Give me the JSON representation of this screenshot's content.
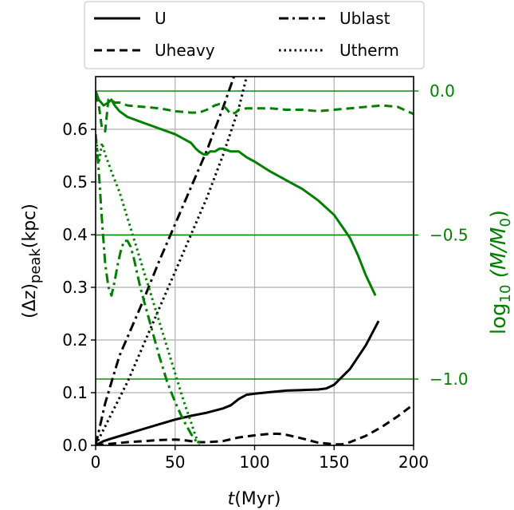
{
  "chart_data": {
    "type": "line",
    "xlabel": {
      "italic": "t",
      "rest": "(Myr)"
    },
    "ylabel": {
      "prefix": "(Δz)",
      "sub": "peak",
      "suffix": "(kpc)"
    },
    "ylabel_right": {
      "prefix": "log",
      "sub": "10",
      "mid": " (M/M",
      "sub2": "0",
      "suffix": ")"
    },
    "xlim": [
      0,
      200
    ],
    "ylim": [
      0,
      0.7
    ],
    "ylim_right": [
      -1.23,
      0.05
    ],
    "grid": true,
    "x_ticks": [
      0,
      50,
      100,
      150,
      200
    ],
    "x_tick_labels": [
      "0",
      "50",
      "100",
      "150",
      "200"
    ],
    "y_ticks": [
      0.0,
      0.1,
      0.2,
      0.3,
      0.4,
      0.5,
      0.6
    ],
    "y_tick_labels": [
      "0.0",
      "0.1",
      "0.2",
      "0.3",
      "0.4",
      "0.5",
      "0.6"
    ],
    "y_right_ticks": [
      0.0,
      -0.5,
      -1.0
    ],
    "y_right_tick_labels": [
      "0.0",
      "−0.5",
      "−1.0"
    ],
    "colors": {
      "left": "#000000",
      "right": "#008000",
      "grid": "#b0b0b0"
    },
    "legend": {
      "placement": "top-center",
      "entries": [
        {
          "label": "U",
          "dash": "solid"
        },
        {
          "label": "Ublast",
          "dash": "dashdot"
        },
        {
          "label": "Uheavy",
          "dash": "dashed"
        },
        {
          "label": "Utherm",
          "dash": "dotted"
        }
      ]
    },
    "series": [
      {
        "key": "U",
        "axis": "left",
        "color": "#000000",
        "dash": "solid",
        "x": [
          0,
          5,
          10,
          20,
          30,
          40,
          50,
          60,
          70,
          80,
          85,
          90,
          95,
          100,
          110,
          120,
          130,
          140,
          145,
          150,
          160,
          170,
          178
        ],
        "y": [
          0.0,
          0.008,
          0.013,
          0.022,
          0.031,
          0.04,
          0.049,
          0.056,
          0.062,
          0.07,
          0.076,
          0.088,
          0.096,
          0.098,
          0.101,
          0.104,
          0.105,
          0.106,
          0.108,
          0.115,
          0.145,
          0.19,
          0.236
        ]
      },
      {
        "key": "Ublast",
        "axis": "left",
        "color": "#000000",
        "dash": "dashdot",
        "x": [
          0,
          3,
          6,
          10,
          15,
          20,
          30,
          40,
          50,
          60,
          70,
          80,
          87
        ],
        "y": [
          0.0,
          0.04,
          0.08,
          0.12,
          0.17,
          0.205,
          0.275,
          0.35,
          0.42,
          0.49,
          0.56,
          0.64,
          0.7
        ]
      },
      {
        "key": "Uheavy",
        "axis": "left",
        "color": "#000000",
        "dash": "dashed",
        "x": [
          0,
          10,
          20,
          30,
          40,
          50,
          55,
          60,
          65,
          70,
          80,
          90,
          100,
          110,
          115,
          120,
          130,
          140,
          150,
          155,
          160,
          170,
          180,
          190,
          200
        ],
        "y": [
          0.0,
          0.003,
          0.006,
          0.008,
          0.01,
          0.011,
          0.01,
          0.008,
          0.006,
          0.006,
          0.008,
          0.015,
          0.019,
          0.022,
          0.022,
          0.02,
          0.013,
          0.005,
          0.002,
          0.002,
          0.006,
          0.018,
          0.035,
          0.055,
          0.078
        ]
      },
      {
        "key": "Utherm",
        "axis": "left",
        "color": "#000000",
        "dash": "dotted",
        "x": [
          0,
          10,
          20,
          30,
          40,
          50,
          60,
          70,
          80,
          90,
          95
        ],
        "y": [
          0.0,
          0.06,
          0.12,
          0.19,
          0.26,
          0.33,
          0.4,
          0.47,
          0.55,
          0.64,
          0.7
        ]
      },
      {
        "key": "U-mass",
        "axis": "right",
        "color": "#008000",
        "dash": "solid",
        "x": [
          0,
          2,
          5,
          8,
          10,
          12,
          15,
          20,
          30,
          40,
          50,
          55,
          60,
          63,
          65,
          68,
          70,
          72,
          75,
          78,
          80,
          85,
          90,
          95,
          100,
          110,
          120,
          130,
          140,
          150,
          160,
          165,
          170,
          176
        ],
        "y": [
          0.0,
          -0.03,
          -0.05,
          -0.04,
          -0.03,
          -0.05,
          -0.07,
          -0.09,
          -0.11,
          -0.13,
          -0.15,
          -0.165,
          -0.18,
          -0.2,
          -0.21,
          -0.22,
          -0.22,
          -0.21,
          -0.21,
          -0.2,
          -0.2,
          -0.21,
          -0.21,
          -0.23,
          -0.245,
          -0.28,
          -0.31,
          -0.34,
          -0.38,
          -0.43,
          -0.51,
          -0.57,
          -0.64,
          -0.71
        ]
      },
      {
        "key": "Ublast-mass",
        "axis": "right",
        "color": "#008000",
        "dash": "dashdot",
        "x": [
          0,
          2,
          4,
          6,
          8,
          10,
          12,
          14,
          16,
          18,
          20,
          22,
          24,
          26,
          28,
          30,
          35,
          40,
          45,
          50,
          55,
          60,
          65
        ],
        "y": [
          -0.15,
          -0.28,
          -0.45,
          -0.6,
          -0.68,
          -0.71,
          -0.66,
          -0.6,
          -0.55,
          -0.52,
          -0.52,
          -0.54,
          -0.58,
          -0.63,
          -0.68,
          -0.72,
          -0.82,
          -0.92,
          -1.01,
          -1.08,
          -1.14,
          -1.19,
          -1.23
        ]
      },
      {
        "key": "Uheavy-mass",
        "axis": "right",
        "color": "#008000",
        "dash": "dashed",
        "x": [
          0,
          2,
          4,
          6,
          8,
          10,
          12,
          15,
          20,
          30,
          40,
          50,
          60,
          65,
          70,
          75,
          78,
          80,
          82,
          85,
          88,
          90,
          95,
          100,
          110,
          120,
          130,
          140,
          150,
          160,
          170,
          180,
          190,
          200
        ],
        "y": [
          -0.01,
          -0.05,
          -0.13,
          -0.14,
          -0.03,
          -0.03,
          -0.04,
          -0.04,
          -0.05,
          -0.055,
          -0.06,
          -0.07,
          -0.075,
          -0.075,
          -0.065,
          -0.05,
          -0.045,
          -0.05,
          -0.06,
          -0.08,
          -0.075,
          -0.065,
          -0.06,
          -0.06,
          -0.06,
          -0.065,
          -0.065,
          -0.07,
          -0.065,
          -0.06,
          -0.055,
          -0.05,
          -0.055,
          -0.08
        ]
      },
      {
        "key": "Utherm-mass",
        "axis": "right",
        "color": "#008000",
        "dash": "dotted",
        "x": [
          0,
          2,
          4,
          6,
          8,
          10,
          15,
          20,
          25,
          30,
          35,
          40,
          45,
          50,
          55,
          60,
          63,
          66
        ],
        "y": [
          -0.15,
          -0.25,
          -0.18,
          -0.22,
          -0.25,
          -0.28,
          -0.35,
          -0.44,
          -0.53,
          -0.62,
          -0.71,
          -0.8,
          -0.89,
          -0.98,
          -1.07,
          -1.15,
          -1.2,
          -1.23
        ]
      }
    ]
  }
}
